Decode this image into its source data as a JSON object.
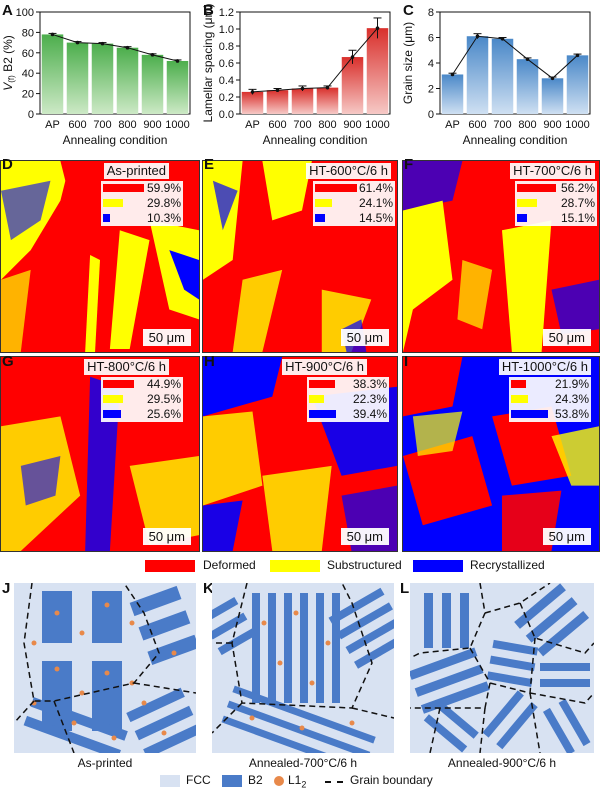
{
  "colors": {
    "green_bar": "#5cb85c",
    "red_bar": "#e0413a",
    "blue_bar": "#5b9bd5",
    "deformed": "#ff0000",
    "substructured": "#ffff00",
    "recrystallized": "#0000ff",
    "fcc": "#d8e2f2",
    "b2": "#4a7bc8",
    "l12": "#e8894a"
  },
  "panels": {
    "A": "A",
    "B": "B",
    "C": "C",
    "D": "D",
    "E": "E",
    "F": "F",
    "G": "G",
    "H": "H",
    "I": "I",
    "J": "J",
    "K": "K",
    "L": "L"
  },
  "chart_data": [
    {
      "type": "bar",
      "categories": [
        "AP",
        "600",
        "700",
        "800",
        "900",
        "1000"
      ],
      "values": [
        78,
        70,
        69,
        65,
        58,
        52
      ],
      "errors": [
        1,
        1,
        1,
        1,
        1,
        1
      ],
      "ylabel_pre": "V",
      "ylabel_sub": "(f)",
      "ylabel_post": " B2 (%)",
      "xlabel": "Annealing condition",
      "ylim": [
        0,
        100
      ],
      "yticks": [
        "0",
        "20",
        "40",
        "60",
        "80",
        "100"
      ],
      "overlay_line": true
    },
    {
      "type": "bar",
      "categories": [
        "AP",
        "600",
        "700",
        "800",
        "900",
        "1000"
      ],
      "values": [
        0.26,
        0.28,
        0.3,
        0.31,
        0.67,
        1.01
      ],
      "errors": [
        0.03,
        0.02,
        0.03,
        0.02,
        0.08,
        0.12
      ],
      "ylabel": "Lamellar spacing (μm)",
      "xlabel": "Annealing condition",
      "ylim": [
        0,
        1.2
      ],
      "yticks": [
        "0.0",
        "0.2",
        "0.4",
        "0.6",
        "0.8",
        "1.0",
        "1.2"
      ],
      "overlay_line": true
    },
    {
      "type": "bar",
      "categories": [
        "AP",
        "600",
        "700",
        "800",
        "900",
        "1000"
      ],
      "values": [
        3.1,
        6.1,
        5.9,
        4.3,
        2.8,
        4.6
      ],
      "errors": [
        0.1,
        0.2,
        0.1,
        0.1,
        0.1,
        0.1
      ],
      "ylabel": "Grain size (μm)",
      "xlabel": "Annealing condition",
      "ylim": [
        0,
        8
      ],
      "yticks": [
        "0",
        "2",
        "4",
        "6",
        "8"
      ],
      "overlay_line": true
    },
    {
      "type": "bar",
      "title": "As-printed",
      "categories": [
        "Deformed",
        "Substructured",
        "Recrystallized"
      ],
      "values": [
        59.9,
        29.8,
        10.3
      ],
      "labels": [
        "59.9%",
        "29.8%",
        "10.3%"
      ]
    },
    {
      "type": "bar",
      "title": "HT-600°C/6 h",
      "categories": [
        "Deformed",
        "Substructured",
        "Recrystallized"
      ],
      "values": [
        61.4,
        24.1,
        14.5
      ],
      "labels": [
        "61.4%",
        "24.1%",
        "14.5%"
      ]
    },
    {
      "type": "bar",
      "title": "HT-700°C/6 h",
      "categories": [
        "Deformed",
        "Substructured",
        "Recrystallized"
      ],
      "values": [
        56.2,
        28.7,
        15.1
      ],
      "labels": [
        "56.2%",
        "28.7%",
        "15.1%"
      ]
    },
    {
      "type": "bar",
      "title": "HT-800°C/6 h",
      "categories": [
        "Deformed",
        "Substructured",
        "Recrystallized"
      ],
      "values": [
        44.9,
        29.5,
        25.6
      ],
      "labels": [
        "44.9%",
        "29.5%",
        "25.6%"
      ]
    },
    {
      "type": "bar",
      "title": "HT-900°C/6 h",
      "categories": [
        "Deformed",
        "Substructured",
        "Recrystallized"
      ],
      "values": [
        38.3,
        22.3,
        39.4
      ],
      "labels": [
        "38.3%",
        "22.3%",
        "39.4%"
      ]
    },
    {
      "type": "bar",
      "title": "HT-1000°C/6 h",
      "categories": [
        "Deformed",
        "Substructured",
        "Recrystallized"
      ],
      "values": [
        21.9,
        24.3,
        53.8
      ],
      "labels": [
        "21.9%",
        "24.3%",
        "53.8%"
      ]
    }
  ],
  "scale_bar": "50 μm",
  "map_legend": [
    "Deformed",
    "Substructured",
    "Recrystallized"
  ],
  "schematics": {
    "J": "As-printed",
    "K": "Annealed-700°C/6 h",
    "L": "Annealed-900°C/6 h"
  },
  "bottom_legend": {
    "fcc": "FCC",
    "b2": "B2",
    "l12_main": "L1",
    "l12_sub": "2",
    "gb": "Grain boundary"
  }
}
